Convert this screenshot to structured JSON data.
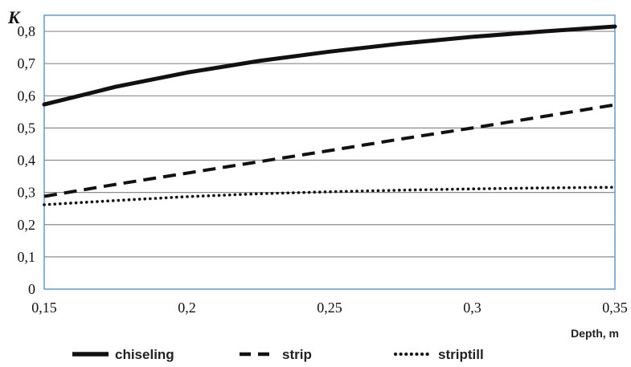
{
  "chart_data": {
    "type": "line",
    "title": "",
    "xlabel": "Depth, m",
    "ylabel": "K",
    "xlim": [
      0.15,
      0.35
    ],
    "ylim": [
      0,
      0.85
    ],
    "grid": true,
    "legend_position": "bottom",
    "x_ticks": [
      "0,15",
      "0,2",
      "0,25",
      "0,3",
      "0,35"
    ],
    "y_ticks": [
      "0",
      "0,1",
      "0,2",
      "0,3",
      "0,4",
      "0,5",
      "0,6",
      "0,7",
      "0,8"
    ],
    "x": [
      0.15,
      0.175,
      0.2,
      0.225,
      0.25,
      0.275,
      0.3,
      0.325,
      0.35
    ],
    "series": [
      {
        "name": "chiseling",
        "style": "solid",
        "values": [
          0.573,
          0.628,
          0.672,
          0.708,
          0.737,
          0.762,
          0.783,
          0.8,
          0.815
        ]
      },
      {
        "name": "strip",
        "style": "dashed",
        "values": [
          0.288,
          0.325,
          0.36,
          0.395,
          0.43,
          0.466,
          0.5,
          0.536,
          0.572
        ]
      },
      {
        "name": "striptill",
        "style": "dotted",
        "values": [
          0.262,
          0.275,
          0.287,
          0.296,
          0.302,
          0.307,
          0.311,
          0.314,
          0.316
        ]
      }
    ],
    "colors": {
      "line": "#111111",
      "grid": "#8c8c8c",
      "axis": "#5b9bd5"
    }
  }
}
